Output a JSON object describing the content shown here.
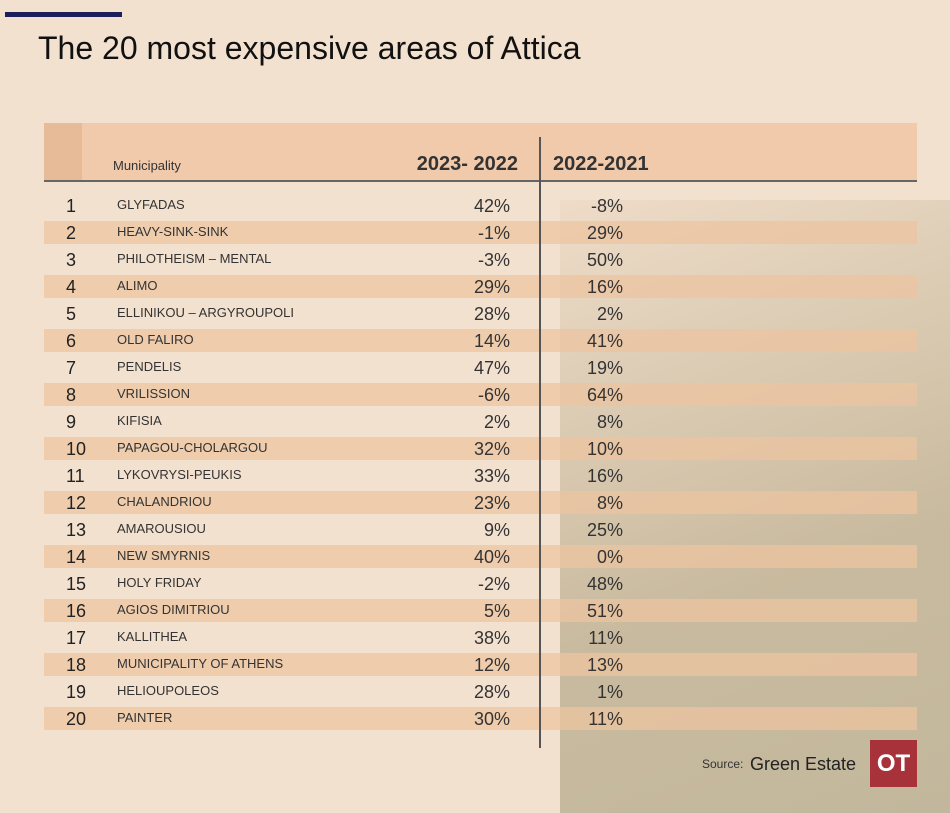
{
  "header": {
    "title": "The 20 most expensive areas of Attica"
  },
  "table": {
    "columns": [
      "Municipality",
      "2023- 2022",
      "2022-2021"
    ],
    "rows": [
      [
        "1",
        "GLYFADAS",
        "42%",
        "-8%"
      ],
      [
        "2",
        "HEAVY-SINK-SINK",
        "-1%",
        "29%"
      ],
      [
        "3",
        "PHILOTHEISM – MENTAL",
        "-3%",
        "50%"
      ],
      [
        "4",
        "ALIMO",
        "29%",
        "16%"
      ],
      [
        "5",
        "ELLINIKOU – ARGYROUPOLI",
        "28%",
        "2%"
      ],
      [
        "6",
        "OLD FALIRO",
        "14%",
        "41%"
      ],
      [
        "7",
        "PENDELIS",
        "47%",
        "19%"
      ],
      [
        "8",
        "VRILISSION",
        "-6%",
        "64%"
      ],
      [
        "9",
        "KIFISIA",
        "2%",
        "8%"
      ],
      [
        "10",
        "PAPAGOU-CHOLARGOU",
        "32%",
        "10%"
      ],
      [
        "11",
        "LYKOVRYSI-PEUKIS",
        "33%",
        "16%"
      ],
      [
        "12",
        "CHALANDRIOU",
        "23%",
        "8%"
      ],
      [
        "13",
        "AMAROUSIOU",
        "9%",
        "25%"
      ],
      [
        "14",
        "NEW SMYRNIS",
        "40%",
        "0%"
      ],
      [
        "15",
        "HOLY FRIDAY",
        "-2%",
        "48%"
      ],
      [
        "16",
        "AGIOS DIMITRIOU",
        "5%",
        "51%"
      ],
      [
        "17",
        "KALLITHEA",
        "38%",
        "11%"
      ],
      [
        "18",
        "MUNICIPALITY OF ATHENS",
        "12%",
        "13%"
      ],
      [
        "19",
        "HELIOUPOLEOS",
        "28%",
        "1%"
      ],
      [
        "20",
        "PAINTER",
        "30%",
        "11%"
      ]
    ]
  },
  "footer": {
    "source_label": "Source:",
    "source": "Green Estate",
    "logo": "OT"
  }
}
